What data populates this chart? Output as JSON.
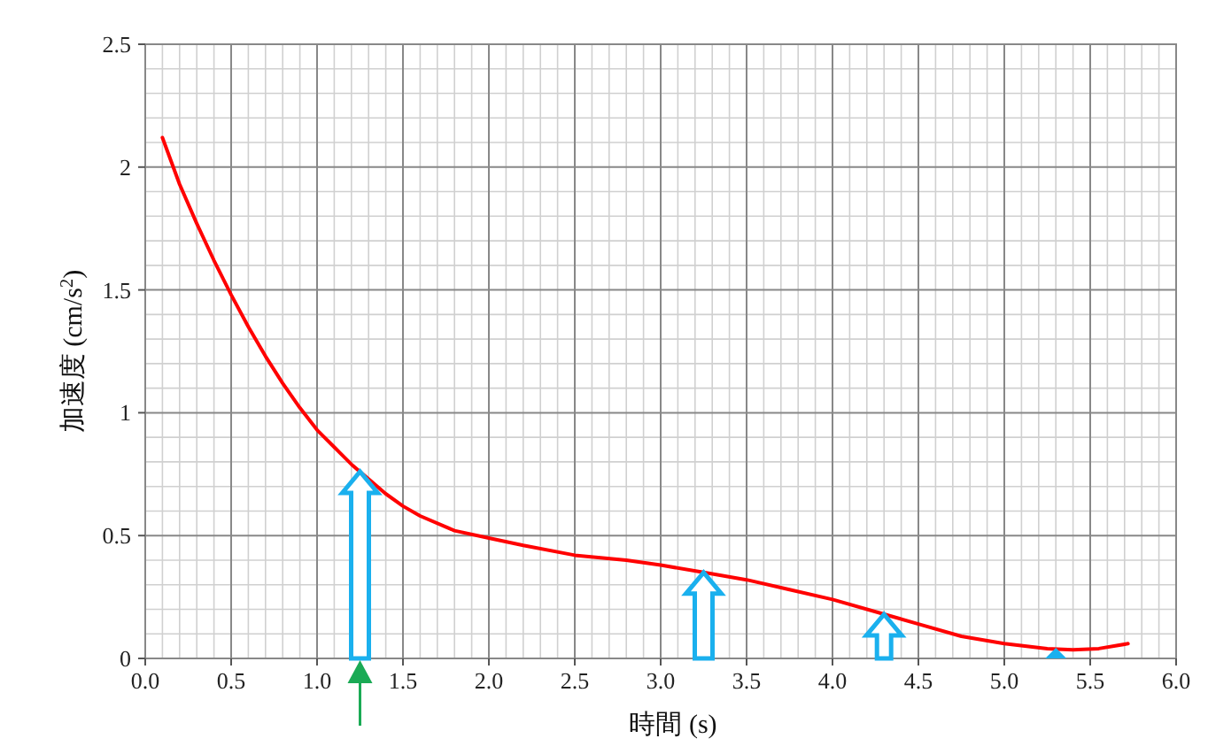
{
  "chart_data": {
    "type": "line",
    "xlabel": "時間 (s)",
    "ylabel": "加速度 (cm/s$^{2}$)",
    "series": [
      {
        "color": "#ff0000",
        "x": [
          0.1,
          0.2,
          0.3,
          0.4,
          0.5,
          0.6,
          0.7,
          0.8,
          0.9,
          1.0,
          1.1,
          1.2,
          1.3,
          1.4,
          1.5,
          1.6,
          1.8,
          2.0,
          2.2,
          2.5,
          2.8,
          3.0,
          3.25,
          3.5,
          3.75,
          4.0,
          4.3,
          4.5,
          4.75,
          5.0,
          5.25,
          5.4,
          5.55,
          5.72
        ],
        "values": [
          2.12,
          1.93,
          1.77,
          1.62,
          1.48,
          1.35,
          1.23,
          1.12,
          1.02,
          0.93,
          0.86,
          0.79,
          0.73,
          0.67,
          0.62,
          0.58,
          0.52,
          0.49,
          0.46,
          0.42,
          0.4,
          0.38,
          0.35,
          0.32,
          0.28,
          0.24,
          0.18,
          0.14,
          0.09,
          0.06,
          0.04,
          0.035,
          0.04,
          0.06
        ]
      }
    ],
    "xlim": [
      0,
      6
    ],
    "ylim": [
      0,
      2.5
    ],
    "xticks": [
      {
        "value": 0,
        "label": "0.0"
      },
      {
        "value": 0.5,
        "label": "0.5"
      },
      {
        "value": 1,
        "label": "1.0"
      },
      {
        "value": 1.5,
        "label": "1.5"
      },
      {
        "value": 2,
        "label": "2.0"
      },
      {
        "value": 2.5,
        "label": "2.5"
      },
      {
        "value": 3,
        "label": "3.0"
      },
      {
        "value": 3.5,
        "label": "3.5"
      },
      {
        "value": 4,
        "label": "4.0"
      },
      {
        "value": 4.5,
        "label": "4.5"
      },
      {
        "value": 5,
        "label": "5.0"
      },
      {
        "value": 5.5,
        "label": "5.5"
      },
      {
        "value": 6,
        "label": "6.0"
      }
    ],
    "yticks": [
      0,
      0.5,
      1,
      1.5,
      2,
      2.5
    ],
    "grid": true,
    "marker": "none",
    "line_style": "solid"
  }
}
